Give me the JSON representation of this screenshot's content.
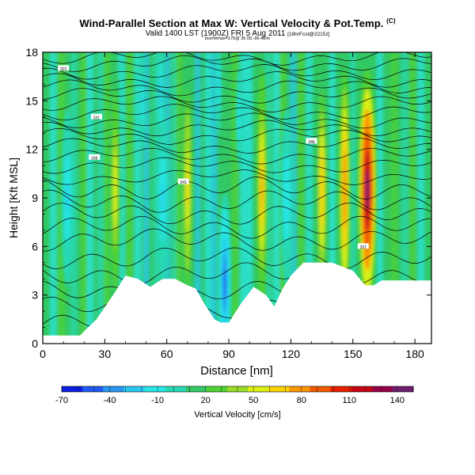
{
  "header": {
    "title": "Wind-Parallel Section at Max W: Vertical Velocity & Pot.Temp.",
    "title_mark": "(C)",
    "subtitle": "Valid 1400 LST (1900Z) FRI 5 Aug 2011",
    "subtitle_note": "[18hrFcst@2215z]",
    "info_line": "box/Wmax=175@ 35.09,-96.48/m"
  },
  "chart_data": {
    "type": "heatmap",
    "title": "Wind-Parallel Section at Max W: Vertical Velocity & Pot.Temp.",
    "xlabel": "Distance [nm]",
    "ylabel": "Height [Kft MSL]",
    "xlim": [
      0,
      188
    ],
    "ylim": [
      0,
      18
    ],
    "xticks": [
      0,
      30,
      60,
      90,
      120,
      150,
      180
    ],
    "yticks": [
      0,
      3,
      6,
      9,
      12,
      15,
      18
    ],
    "xtick_labels": [
      "0",
      "30",
      "60",
      "90",
      "120",
      "150",
      "180"
    ],
    "ytick_labels": [
      "0",
      "3",
      "6",
      "9",
      "12",
      "15",
      "18"
    ],
    "colorbar": {
      "label": "Vertical Velocity [cm/s]",
      "range": [
        -70,
        150
      ],
      "tick_values": [
        -70,
        -40,
        -10,
        20,
        50,
        80,
        110,
        140
      ],
      "tick_labels": [
        "-70",
        "-40",
        "-10",
        "20",
        "50",
        "80",
        "110",
        "140"
      ],
      "colors": [
        "#0a1ee0",
        "#1e5af0",
        "#2896f0",
        "#28c8f0",
        "#28e6e6",
        "#28d8b4",
        "#32c864",
        "#50d232",
        "#96dc28",
        "#dcf014",
        "#fad200",
        "#fa9600",
        "#f05a00",
        "#e61e00",
        "#c80014",
        "#960046",
        "#6e1e6e"
      ]
    },
    "updraft_columns": [
      {
        "center_nm": 35,
        "peak_cm_s": 55
      },
      {
        "center_nm": 70,
        "peak_cm_s": 60
      },
      {
        "center_nm": 106,
        "peak_cm_s": 75
      },
      {
        "center_nm": 135,
        "peak_cm_s": 70
      },
      {
        "center_nm": 146,
        "peak_cm_s": 85
      },
      {
        "center_nm": 157,
        "peak_cm_s": 140
      }
    ],
    "downdraft_columns": [
      {
        "center_nm": 12,
        "min_cm_s": -20
      },
      {
        "center_nm": 58,
        "min_cm_s": -20
      },
      {
        "center_nm": 88,
        "min_cm_s": -45
      },
      {
        "center_nm": 118,
        "min_cm_s": -15
      }
    ],
    "theta_contours_kft": [
      1.2,
      2.2,
      3.2,
      4.3,
      5.3,
      6.4,
      7.2,
      8.0,
      8.8,
      9.6,
      10.3,
      11.0,
      11.6,
      12.2,
      12.8,
      13.3,
      13.8,
      14.3,
      14.8,
      15.3,
      15.8,
      16.3,
      16.8,
      17.3,
      17.7
    ],
    "terrain": [
      {
        "x": 0,
        "top_kft": 0.5
      },
      {
        "x": 10,
        "top_kft": 0.5
      },
      {
        "x": 18,
        "top_kft": 0.5
      },
      {
        "x": 26,
        "top_kft": 1.5
      },
      {
        "x": 34,
        "top_kft": 3.0
      },
      {
        "x": 40,
        "top_kft": 4.2
      },
      {
        "x": 46,
        "top_kft": 4.0
      },
      {
        "x": 52,
        "top_kft": 3.5
      },
      {
        "x": 58,
        "top_kft": 4.0
      },
      {
        "x": 64,
        "top_kft": 4.0
      },
      {
        "x": 70,
        "top_kft": 3.6
      },
      {
        "x": 74,
        "top_kft": 3.4
      },
      {
        "x": 78,
        "top_kft": 2.5
      },
      {
        "x": 83,
        "top_kft": 1.5
      },
      {
        "x": 86,
        "top_kft": 1.3
      },
      {
        "x": 90,
        "top_kft": 1.3
      },
      {
        "x": 96,
        "top_kft": 2.5
      },
      {
        "x": 102,
        "top_kft": 3.5
      },
      {
        "x": 108,
        "top_kft": 3.0
      },
      {
        "x": 112,
        "top_kft": 2.3
      },
      {
        "x": 116,
        "top_kft": 3.4
      },
      {
        "x": 120,
        "top_kft": 4.2
      },
      {
        "x": 126,
        "top_kft": 5.0
      },
      {
        "x": 140,
        "top_kft": 5.0
      },
      {
        "x": 144,
        "top_kft": 4.8
      },
      {
        "x": 150,
        "top_kft": 4.5
      },
      {
        "x": 156,
        "top_kft": 3.6
      },
      {
        "x": 160,
        "top_kft": 3.6
      },
      {
        "x": 164,
        "top_kft": 3.9
      },
      {
        "x": 188,
        "top_kft": 3.9
      }
    ],
    "contour_labels": [
      "322",
      "331",
      "336",
      "341",
      "346",
      "321"
    ]
  }
}
